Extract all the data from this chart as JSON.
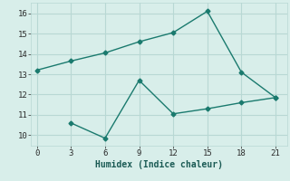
{
  "xlabel": "Humidex (Indice chaleur)",
  "line1_x": [
    0,
    3,
    6,
    9,
    12,
    15,
    18,
    21
  ],
  "line1_y": [
    13.2,
    13.65,
    14.05,
    14.6,
    15.05,
    16.1,
    13.1,
    11.85
  ],
  "line2_x": [
    3,
    6,
    9,
    12,
    15,
    18,
    21
  ],
  "line2_y": [
    10.6,
    9.85,
    12.7,
    11.05,
    11.3,
    11.6,
    11.85
  ],
  "line_color": "#1a7a6e",
  "bg_color": "#d8eeea",
  "grid_color": "#b8d8d4",
  "xlim": [
    -0.5,
    22
  ],
  "ylim": [
    9.5,
    16.5
  ],
  "xticks": [
    0,
    3,
    6,
    9,
    12,
    15,
    18,
    21
  ],
  "yticks": [
    10,
    11,
    12,
    13,
    14,
    15,
    16
  ],
  "marker": "D",
  "markersize": 2.5,
  "linewidth": 1.0
}
